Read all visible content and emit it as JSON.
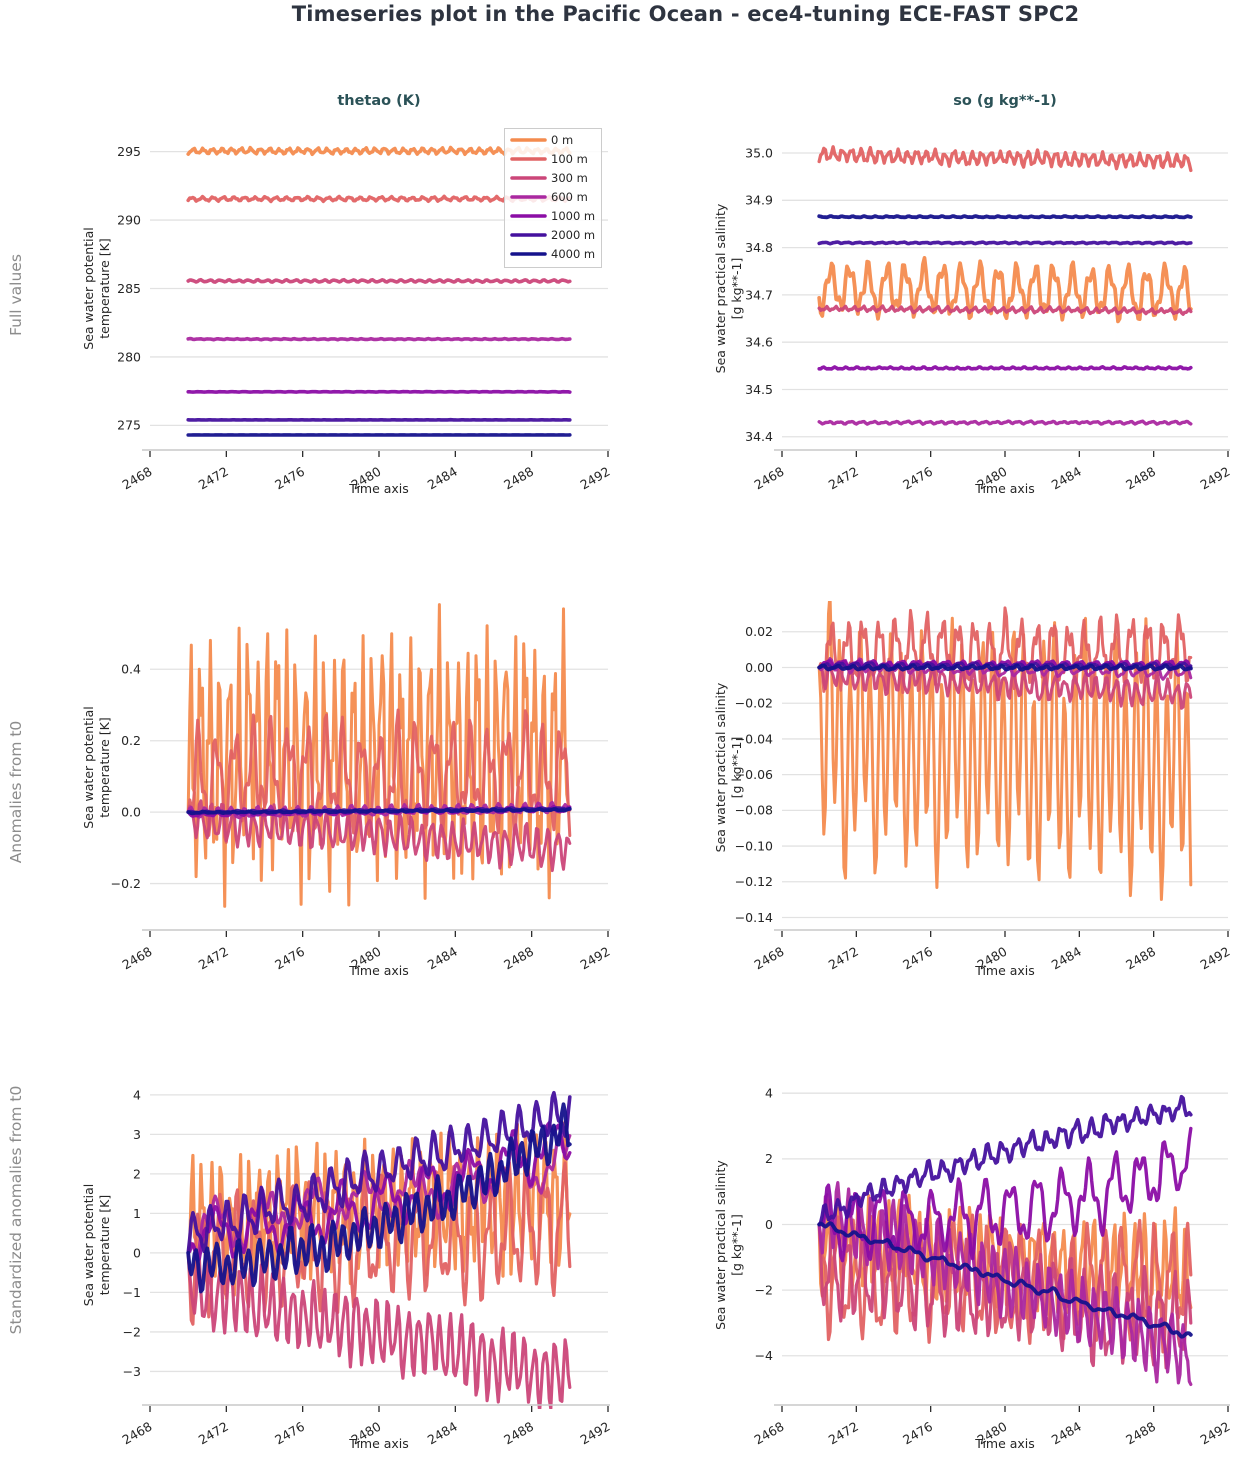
{
  "title": "Timeseries plot in the Pacific Ocean - ece4-tuning ECE-FAST SPC2",
  "columns": [
    {
      "title": "thetao (K)"
    },
    {
      "title": "so (g kg**-1)"
    }
  ],
  "rows": [
    {
      "label": "Full values"
    },
    {
      "label": "Anomalies from t0"
    },
    {
      "label": "Standardized anomalies from t0"
    }
  ],
  "colors": {
    "title_text": "#2e3440",
    "column_title_text": "#2b5257",
    "row_label_text": "#8c8c8c",
    "tick_text": "#262626",
    "gridline": "#e2e2e2",
    "axis_line": "#c9c9c9",
    "tick_mark": "#2b2b2b",
    "legend_border": "#cccccc"
  },
  "depths": [
    {
      "label": "0 m",
      "color": "#F48B4E"
    },
    {
      "label": "100 m",
      "color": "#E16263"
    },
    {
      "label": "300 m",
      "color": "#CB4679"
    },
    {
      "label": "600 m",
      "color": "#AA28A0"
    },
    {
      "label": "1000 m",
      "color": "#8B0DA5"
    },
    {
      "label": "2000 m",
      "color": "#45119E"
    },
    {
      "label": "4000 m",
      "color": "#15128C"
    }
  ],
  "chart_data": [
    {
      "id": "thetao-full-values",
      "type": "line",
      "row": 0,
      "col": 0,
      "xlabel": "Time axis",
      "ylabel": [
        "Sea water potential",
        "temperature [K]"
      ],
      "xlim": [
        2468,
        2492
      ],
      "xticks": [
        2468,
        2472,
        2476,
        2480,
        2484,
        2488,
        2492
      ],
      "ylim": [
        273.2,
        296.8
      ],
      "yticks": [
        275,
        280,
        285,
        290,
        295
      ],
      "ydecimals": 0,
      "data_x_range": [
        2470,
        2490
      ],
      "anchor0": false,
      "show_legend": true,
      "series": [
        {
          "name": "0 m",
          "color": "#F48B4E",
          "mean": 295.05,
          "amp": 0.17,
          "period": 0.5,
          "amp2": 0.07,
          "period2": 0.21,
          "noise": 0.03,
          "seed": 1,
          "lw": 3.6
        },
        {
          "name": "100 m",
          "color": "#E16263",
          "mean": 291.55,
          "amp": 0.12,
          "period": 0.55,
          "amp2": 0.05,
          "period2": 0.23,
          "noise": 0.02,
          "seed": 2,
          "lw": 3.6
        },
        {
          "name": "300 m",
          "color": "#CB4679",
          "mean": 285.55,
          "amp": 0.07,
          "period": 0.5,
          "amp2": 0.02,
          "period2": 0.3,
          "noise": 0.01,
          "seed": 3,
          "lw": 3.6
        },
        {
          "name": "600 m",
          "color": "#AA28A0",
          "mean": 281.3,
          "amp": 0.025,
          "period": 0.5,
          "amp2": 0.01,
          "period2": 0.27,
          "noise": 0.006,
          "seed": 4,
          "lw": 3.6
        },
        {
          "name": "1000 m",
          "color": "#8B0DA5",
          "mean": 277.45,
          "amp": 0.012,
          "period": 0.6,
          "amp2": 0.005,
          "period2": 0.3,
          "noise": 0.004,
          "seed": 5,
          "lw": 3.6
        },
        {
          "name": "2000 m",
          "color": "#45119E",
          "mean": 275.4,
          "amp": 0.006,
          "period": 0.6,
          "amp2": 0.003,
          "period2": 0.3,
          "noise": 0.002,
          "seed": 6,
          "lw": 3.6
        },
        {
          "name": "4000 m",
          "color": "#15128C",
          "mean": 274.3,
          "amp": 0.004,
          "period": 0.6,
          "amp2": 0.002,
          "period2": 0.3,
          "noise": 0.001,
          "seed": 7,
          "lw": 3.6
        }
      ]
    },
    {
      "id": "so-full-values",
      "type": "line",
      "row": 0,
      "col": 1,
      "xlabel": "Time axis",
      "ylabel": [
        "Sea water practical salinity",
        "[g kg**-1]"
      ],
      "xlim": [
        2468,
        2492
      ],
      "xticks": [
        2468,
        2472,
        2476,
        2480,
        2484,
        2488,
        2492
      ],
      "ylim": [
        34.372,
        35.055
      ],
      "yticks": [
        34.4,
        34.5,
        34.6,
        34.7,
        34.8,
        34.9,
        35.0
      ],
      "ydecimals": 1,
      "data_x_range": [
        2470,
        2490
      ],
      "anchor0": false,
      "show_legend": false,
      "series": [
        {
          "name": "0 m",
          "color": "#F48B4E",
          "mean": 34.715,
          "trend": -0.0006,
          "amp": 0.045,
          "period": 1.0,
          "amp2": 0.018,
          "period2": 0.38,
          "noise": 0.006,
          "seed": 8,
          "lw": 3.8
        },
        {
          "name": "100 m",
          "color": "#E16263",
          "mean": 34.996,
          "trend": -0.0007,
          "amp": 0.012,
          "period": 0.5,
          "amp2": 0.005,
          "period2": 0.22,
          "noise": 0.003,
          "seed": 9,
          "lw": 3.4
        },
        {
          "name": "300 m",
          "color": "#CB4679",
          "mean": 34.671,
          "trend": -0.0003,
          "amp": 0.004,
          "period": 0.5,
          "amp2": 0.002,
          "period2": 0.25,
          "noise": 0.0015,
          "seed": 10,
          "lw": 3.4
        },
        {
          "name": "600 m",
          "color": "#AA28A0",
          "mean": 34.43,
          "trend": 0,
          "amp": 0.002,
          "period": 0.6,
          "amp2": 0.001,
          "period2": 0.3,
          "noise": 0.0008,
          "seed": 11,
          "lw": 3.4
        },
        {
          "name": "1000 m",
          "color": "#8B0DA5",
          "mean": 34.545,
          "trend": 0,
          "amp": 0.0015,
          "period": 0.6,
          "amp2": 0.001,
          "period2": 0.3,
          "noise": 0.0005,
          "seed": 12,
          "lw": 3.6
        },
        {
          "name": "2000 m",
          "color": "#45119E",
          "mean": 34.81,
          "trend": 0,
          "amp": 0.001,
          "period": 0.6,
          "amp2": 0.0005,
          "period2": 0.3,
          "noise": 0.0004,
          "seed": 13,
          "lw": 3.6
        },
        {
          "name": "4000 m",
          "color": "#15128C",
          "mean": 34.865,
          "trend": 0,
          "amp": 0.001,
          "period": 0.6,
          "amp2": 0.0005,
          "period2": 0.3,
          "noise": 0.0003,
          "seed": 14,
          "lw": 3.8
        }
      ]
    },
    {
      "id": "thetao-anomalies",
      "type": "line",
      "row": 1,
      "col": 0,
      "xlabel": "Time axis",
      "ylabel": [
        "Sea water potential",
        "temperature [K]"
      ],
      "xlim": [
        2468,
        2492
      ],
      "xticks": [
        2468,
        2472,
        2476,
        2480,
        2484,
        2488,
        2492
      ],
      "ylim": [
        -0.33,
        0.58
      ],
      "yticks": [
        -0.2,
        0.0,
        0.2,
        0.4
      ],
      "ydecimals": 1,
      "data_x_range": [
        2470,
        2490
      ],
      "anchor0": true,
      "show_legend": false,
      "series": [
        {
          "name": "0 m",
          "color": "#F48B4E",
          "mean": 0.08,
          "trend": 0,
          "amp": 0.26,
          "period": 0.5,
          "amp2": 0.13,
          "period2": 0.21,
          "noise": 0.05,
          "seed": 15,
          "lw": 3.0
        },
        {
          "name": "100 m",
          "color": "#E16263",
          "mean": 0.06,
          "trend": 0,
          "amp": 0.11,
          "period": 0.95,
          "amp2": 0.06,
          "period2": 0.42,
          "noise": 0.025,
          "seed": 16,
          "lw": 3.0
        },
        {
          "name": "300 m",
          "color": "#CB4679",
          "mean": 0,
          "trend": -0.004,
          "amp": 0.045,
          "period": 0.55,
          "amp2": 0.015,
          "period2": 0.3,
          "noise": 0.008,
          "seed": 17,
          "lw": 3.0
        },
        {
          "name": "600 m",
          "color": "#AA28A0",
          "mean": 0,
          "trend": 0.0008,
          "amp": 0.012,
          "period": 0.7,
          "amp2": 0.004,
          "period2": 0.35,
          "noise": 0.004,
          "seed": 18,
          "lw": 3.0
        },
        {
          "name": "1000 m",
          "color": "#8B0DA5",
          "mean": 0,
          "trend": 0.0007,
          "amp": 0.005,
          "period": 0.8,
          "amp2": 0.002,
          "period2": 0.4,
          "noise": 0.002,
          "seed": 19,
          "lw": 3.2
        },
        {
          "name": "2000 m",
          "color": "#45119E",
          "mean": 0,
          "trend": 0.0005,
          "amp": 0.002,
          "period": 0.8,
          "amp2": 0.001,
          "period2": 0.4,
          "noise": 0.001,
          "seed": 20,
          "lw": 3.2
        },
        {
          "name": "4000 m",
          "color": "#15128C",
          "mean": 0,
          "trend": 0.0004,
          "amp": 0.0015,
          "period": 0.8,
          "amp2": 0.001,
          "period2": 0.4,
          "noise": 0.0008,
          "seed": 21,
          "lw": 3.8
        }
      ]
    },
    {
      "id": "so-anomalies",
      "type": "line",
      "row": 1,
      "col": 1,
      "xlabel": "Time axis",
      "ylabel": [
        "Sea water practical salinity",
        "[g kg**-1]"
      ],
      "xlim": [
        2468,
        2492
      ],
      "xticks": [
        2468,
        2472,
        2476,
        2480,
        2484,
        2488,
        2492
      ],
      "ylim": [
        -0.147,
        0.035
      ],
      "yticks": [
        0.02,
        0.0,
        -0.02,
        -0.04,
        -0.06,
        -0.08,
        -0.1,
        -0.12,
        -0.14
      ],
      "ydecimals": 2,
      "data_x_range": [
        2470,
        2490
      ],
      "anchor0": true,
      "show_legend": false,
      "series": [
        {
          "name": "0 m",
          "color": "#F48B4E",
          "mean": 0,
          "trend": -0.0008,
          "amp": 0.055,
          "period": 0.55,
          "phase": 1.5708,
          "amp2": 0.02,
          "period2": 1.7,
          "noise": 0.008,
          "seed": 22,
          "lw": 3.0
        },
        {
          "name": "100 m",
          "color": "#E16263",
          "mean": 0,
          "trend": 0,
          "amp": 0.015,
          "period": 0.85,
          "amp2": 0.007,
          "period2": 0.3,
          "noise": 0.004,
          "seed": 23,
          "lw": 3.0
        },
        {
          "name": "300 m",
          "color": "#CB4679",
          "mean": 0,
          "trend": -0.0005,
          "amp": 0.006,
          "period": 0.55,
          "phase": 1.2,
          "amp2": 0.002,
          "period2": 0.3,
          "noise": 0.002,
          "seed": 24,
          "lw": 3.0
        },
        {
          "name": "600 m",
          "color": "#AA28A0",
          "mean": 0,
          "trend": -0.0002,
          "amp": 0.0025,
          "period": 0.8,
          "amp2": 0.001,
          "period2": 0.4,
          "noise": 0.001,
          "seed": 25,
          "lw": 3.0
        },
        {
          "name": "1000 m",
          "color": "#8B0DA5",
          "mean": 0,
          "trend": 0,
          "amp": 0.0015,
          "period": 0.8,
          "amp2": 0.0008,
          "period2": 0.4,
          "noise": 0.0005,
          "seed": 26,
          "lw": 3.2
        },
        {
          "name": "2000 m",
          "color": "#45119E",
          "mean": 0,
          "trend": 0,
          "amp": 0.001,
          "period": 0.8,
          "amp2": 0.0005,
          "period2": 0.4,
          "noise": 0.0004,
          "seed": 27,
          "lw": 3.2
        },
        {
          "name": "4000 m",
          "color": "#15128C",
          "mean": 0,
          "trend": 0,
          "amp": 0.0008,
          "period": 0.8,
          "amp2": 0.0004,
          "period2": 0.4,
          "noise": 0.0003,
          "seed": 28,
          "lw": 4.0
        }
      ]
    },
    {
      "id": "thetao-standardized-anomalies",
      "type": "line",
      "row": 2,
      "col": 0,
      "xlabel": "Time axis",
      "ylabel": [
        "Sea water potential",
        "temperature [K]"
      ],
      "xlim": [
        2468,
        2492
      ],
      "xticks": [
        2468,
        2472,
        2476,
        2480,
        2484,
        2488,
        2492
      ],
      "ylim": [
        -3.85,
        4.25
      ],
      "yticks": [
        -3,
        -2,
        -1,
        0,
        1,
        2,
        3,
        4
      ],
      "ydecimals": 0,
      "data_x_range": [
        2470,
        2490
      ],
      "anchor0": true,
      "show_legend": false,
      "series": [
        {
          "name": "0 m",
          "color": "#F48B4E",
          "mean": 0,
          "trend": 0.045,
          "curve": 1,
          "amp": 1.25,
          "period": 0.5,
          "amp2": 0.6,
          "period2": 0.21,
          "noise": 0.28,
          "seed": 29,
          "lw": 3.2
        },
        {
          "name": "100 m",
          "color": "#E16263",
          "mean": 0,
          "trend": 0.04,
          "curve": 1,
          "amp": 1.15,
          "period": 0.95,
          "amp2": 0.55,
          "period2": 0.42,
          "noise": 0.22,
          "seed": 30,
          "lw": 3.2
        },
        {
          "name": "300 m",
          "color": "#CB4679",
          "mean": 0,
          "trend": -0.115,
          "curve": 1,
          "amp": 0.75,
          "period": 0.55,
          "amp2": 0.2,
          "period2": 0.3,
          "noise": 0.15,
          "seed": 31,
          "lw": 3.2
        },
        {
          "name": "600 m",
          "color": "#AA28A0",
          "mean": 0,
          "trend": 0.09,
          "curve": 1,
          "amp": 0.5,
          "period": 2.6,
          "amp2": 0.25,
          "period2": 0.6,
          "noise": 0.12,
          "seed": 32,
          "lw": 3.2
        },
        {
          "name": "1000 m",
          "color": "#8B0DA5",
          "mean": 0,
          "trend": 0.027,
          "curve": 1.5,
          "amp": 0.5,
          "period": 2.2,
          "phase": 3.6,
          "amp2": 0.25,
          "period2": 0.6,
          "noise": 0.1,
          "seed": 33,
          "lw": 3.4
        },
        {
          "name": "2000 m",
          "color": "#45119E",
          "mean": 0,
          "trend": 0.155,
          "curve": 1,
          "amp": 0.4,
          "period": 0.9,
          "amp2": 0.2,
          "period2": 0.45,
          "noise": 0.1,
          "seed": 34,
          "lw": 3.6
        },
        {
          "name": "4000 m",
          "color": "#15128C",
          "mean": 0,
          "trend": 0.016,
          "curve": 1.8,
          "amp": 0.45,
          "period": 0.55,
          "amp2": 0.15,
          "period2": 1.3,
          "noise": 0.1,
          "seed": 35,
          "lw": 3.8
        }
      ]
    },
    {
      "id": "so-standardized-anomalies",
      "type": "line",
      "row": 2,
      "col": 1,
      "xlabel": "Time axis",
      "ylabel": [
        "Sea water practical salinity",
        "[g kg**-1]"
      ],
      "xlim": [
        2468,
        2492
      ],
      "xticks": [
        2468,
        2472,
        2476,
        2480,
        2484,
        2488,
        2492
      ],
      "ylim": [
        -5.5,
        4.25
      ],
      "yticks": [
        -4,
        -2,
        0,
        2,
        4
      ],
      "ydecimals": 0,
      "data_x_range": [
        2470,
        2490
      ],
      "anchor0": true,
      "show_legend": false,
      "series": [
        {
          "name": "0 m",
          "color": "#F48B4E",
          "mean": 0,
          "trend": -0.035,
          "curve": 1,
          "amp": 1.15,
          "period": 0.55,
          "amp2": 0.5,
          "period2": 0.27,
          "noise": 0.25,
          "seed": 36,
          "lw": 3.2
        },
        {
          "name": "100 m",
          "color": "#E16263",
          "mean": 0,
          "trend": -0.012,
          "curve": 1,
          "amp": 1.4,
          "period": 0.9,
          "phase": 1.1,
          "amp2": 0.5,
          "period2": 0.36,
          "noise": 0.25,
          "seed": 37,
          "lw": 3.2
        },
        {
          "name": "300 m",
          "color": "#CB4679",
          "mean": 0,
          "trend": -0.09,
          "curve": 1,
          "amp": 1.1,
          "period": 0.8,
          "amp2": 0.4,
          "period2": 0.33,
          "noise": 0.22,
          "seed": 38,
          "lw": 3.2
        },
        {
          "name": "600 m",
          "color": "#AA28A0",
          "mean": 0,
          "trend": -0.16,
          "curve": 1.1,
          "amp": 0.85,
          "period": 0.6,
          "amp2": 0.3,
          "period2": 0.3,
          "noise": 0.2,
          "seed": 39,
          "lw": 3.2
        },
        {
          "name": "1000 m",
          "color": "#8B0DA5",
          "mean": 0,
          "trend": 0.0011,
          "curve": 2.5,
          "amp": 0.8,
          "period": 1.4,
          "amp2": 0.3,
          "period2": 0.5,
          "noise": 0.2,
          "seed": 40,
          "lw": 3.4
        },
        {
          "name": "2000 m",
          "color": "#45119E",
          "mean": 0,
          "trend": 0.44,
          "curve": 0.7,
          "amp": 0.25,
          "period": 0.8,
          "amp2": 0.12,
          "period2": 0.35,
          "noise": 0.08,
          "seed": 41,
          "lw": 3.6
        },
        {
          "name": "4000 m",
          "color": "#15128C",
          "mean": 0,
          "trend": -0.17,
          "curve": 1,
          "amp": 0.08,
          "period": 1.5,
          "amp2": 0.04,
          "period2": 0.6,
          "noise": 0.04,
          "seed": 42,
          "lw": 3.8
        }
      ]
    }
  ]
}
